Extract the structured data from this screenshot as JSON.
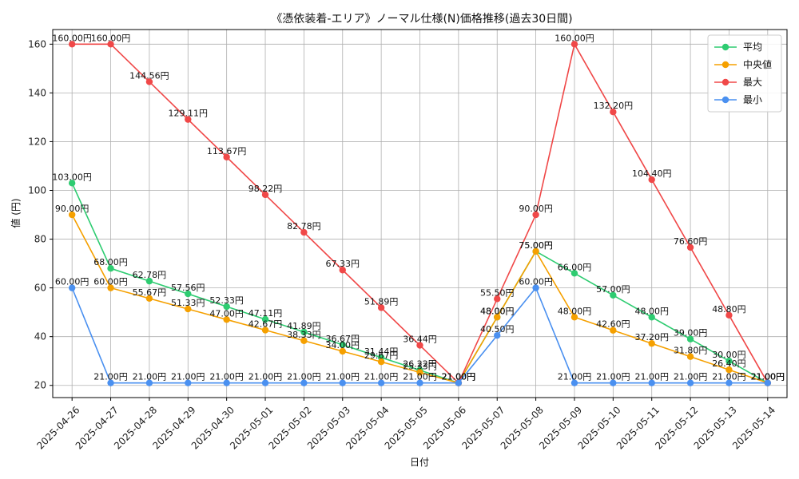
{
  "chart_data": {
    "type": "line",
    "title": "《憑依装着-エリア》ノーマル仕様(N)価格推移(過去30日間)",
    "xlabel": "日付",
    "ylabel": "値 (円)",
    "ylim": [
      15,
      166
    ],
    "yticks": [
      20,
      40,
      60,
      80,
      100,
      120,
      140,
      160
    ],
    "grid": true,
    "legend_position": "top-right",
    "value_suffix": "円",
    "x": [
      "2025-04-26",
      "2025-04-27",
      "2025-04-28",
      "2025-04-29",
      "2025-04-30",
      "2025-05-01",
      "2025-05-02",
      "2025-05-03",
      "2025-05-04",
      "2025-05-05",
      "2025-05-06",
      "2025-05-07",
      "2025-05-08",
      "2025-05-09",
      "2025-05-10",
      "2025-05-11",
      "2025-05-12",
      "2025-05-13",
      "2025-05-14"
    ],
    "series": [
      {
        "name": "平均",
        "color": "#2ecc71",
        "values": [
          103.0,
          68.0,
          62.78,
          57.56,
          52.33,
          47.11,
          41.89,
          36.67,
          31.44,
          26.22,
          21.0,
          48.0,
          75.0,
          66.0,
          57.0,
          48.0,
          39.0,
          30.0,
          21.0
        ]
      },
      {
        "name": "中央値",
        "color": "#f5a000",
        "values": [
          90.0,
          60.0,
          55.67,
          51.33,
          47.0,
          42.67,
          38.33,
          34.0,
          29.67,
          25.33,
          21.0,
          48.0,
          75.0,
          48.0,
          42.6,
          37.2,
          31.8,
          26.4,
          21.0
        ]
      },
      {
        "name": "最大",
        "color": "#f04848",
        "values": [
          160.0,
          160.0,
          144.56,
          129.11,
          113.67,
          98.22,
          82.78,
          67.33,
          51.89,
          36.44,
          21.0,
          55.5,
          90.0,
          160.0,
          132.2,
          104.4,
          76.6,
          48.8,
          21.0
        ]
      },
      {
        "name": "最小",
        "color": "#4a90f0",
        "values": [
          60.0,
          21.0,
          21.0,
          21.0,
          21.0,
          21.0,
          21.0,
          21.0,
          21.0,
          21.0,
          21.0,
          40.5,
          60.0,
          21.0,
          21.0,
          21.0,
          21.0,
          21.0,
          21.0
        ]
      }
    ]
  }
}
